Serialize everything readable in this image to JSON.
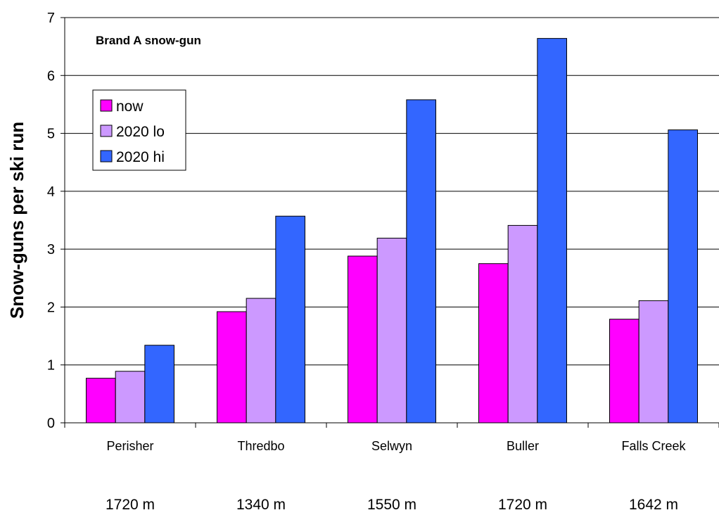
{
  "chart_data": {
    "type": "bar",
    "title": "",
    "annotation": "Brand A snow-gun",
    "xlabel": "",
    "ylabel": "Snow-guns per ski run",
    "ylim": [
      0,
      7
    ],
    "yticks": [
      0,
      1,
      2,
      3,
      4,
      5,
      6,
      7
    ],
    "grid": true,
    "legend_position": "upper-left",
    "categories": [
      "Perisher",
      "Thredbo",
      "Selwyn",
      "Buller",
      "Falls Creek"
    ],
    "elevations": [
      "1720 m",
      "1340 m",
      "1550 m",
      "1720 m",
      "1642 m"
    ],
    "series": [
      {
        "name": "now",
        "color": "#ff00ff",
        "values": [
          0.77,
          1.92,
          2.88,
          2.75,
          1.79
        ]
      },
      {
        "name": "2020 lo",
        "color": "#cc99ff",
        "values": [
          0.89,
          2.15,
          3.19,
          3.41,
          2.11
        ]
      },
      {
        "name": "2020 hi",
        "color": "#3366ff",
        "values": [
          1.34,
          3.57,
          5.58,
          6.64,
          5.06
        ]
      }
    ]
  }
}
